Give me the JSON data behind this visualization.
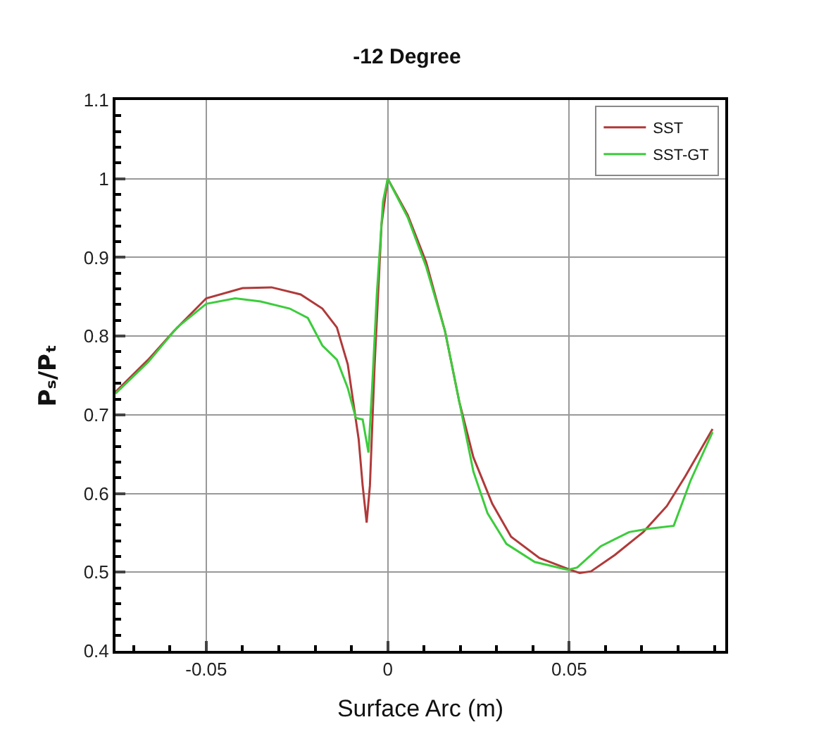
{
  "chart_data": {
    "type": "line",
    "title": "-12 Degree",
    "xlabel": "Surface Arc (m)",
    "ylabel": "Pₛ/Pₜ",
    "xlim": [
      -0.075,
      0.093
    ],
    "xticks": [
      -0.05,
      0,
      0.05
    ],
    "ylim": [
      0.4,
      1.1
    ],
    "yticks": [
      0.4,
      0.5,
      0.6,
      0.7,
      0.8,
      0.9,
      1,
      1.1
    ],
    "grid": true,
    "legend": "top right",
    "marker": "none",
    "line_style": "solid",
    "series": [
      {
        "name": "SST",
        "color": "#b03a3a",
        "x": [
          -0.075,
          -0.066,
          -0.059,
          -0.05,
          -0.04,
          -0.032,
          -0.024,
          -0.018,
          -0.014,
          -0.011,
          -0.008,
          -0.0069,
          -0.0058,
          -0.0049,
          -0.0036,
          -0.0017,
          0,
          0.0055,
          0.0106,
          0.0158,
          0.0197,
          0.0236,
          0.0288,
          0.034,
          0.0418,
          0.0503,
          0.0529,
          0.056,
          0.0626,
          0.0704,
          0.0769,
          0.082,
          0.0895
        ],
        "values": [
          0.729,
          0.77,
          0.806,
          0.848,
          0.861,
          0.862,
          0.853,
          0.835,
          0.811,
          0.764,
          0.669,
          0.61,
          0.563,
          0.61,
          0.764,
          0.942,
          1.0,
          0.954,
          0.894,
          0.806,
          0.717,
          0.646,
          0.587,
          0.545,
          0.518,
          0.503,
          0.499,
          0.501,
          0.522,
          0.551,
          0.584,
          0.622,
          0.682
        ]
      },
      {
        "name": "SST-GT",
        "color": "#3ccc3c",
        "x": [
          -0.075,
          -0.066,
          -0.058,
          -0.05,
          -0.042,
          -0.035,
          -0.027,
          -0.022,
          -0.018,
          -0.014,
          -0.011,
          -0.0088,
          -0.0069,
          -0.0053,
          -0.0043,
          -0.003,
          -0.0013,
          0,
          0.0055,
          0.0106,
          0.0158,
          0.0197,
          0.0236,
          0.0275,
          0.0327,
          0.0405,
          0.0496,
          0.0522,
          0.0587,
          0.0665,
          0.0717,
          0.0788,
          0.0834,
          0.0895
        ],
        "values": [
          0.727,
          0.767,
          0.811,
          0.841,
          0.848,
          0.844,
          0.835,
          0.823,
          0.788,
          0.77,
          0.734,
          0.696,
          0.694,
          0.652,
          0.734,
          0.853,
          0.971,
          1.0,
          0.951,
          0.888,
          0.806,
          0.717,
          0.628,
          0.575,
          0.536,
          0.513,
          0.503,
          0.506,
          0.533,
          0.551,
          0.555,
          0.559,
          0.616,
          0.678
        ]
      }
    ]
  }
}
